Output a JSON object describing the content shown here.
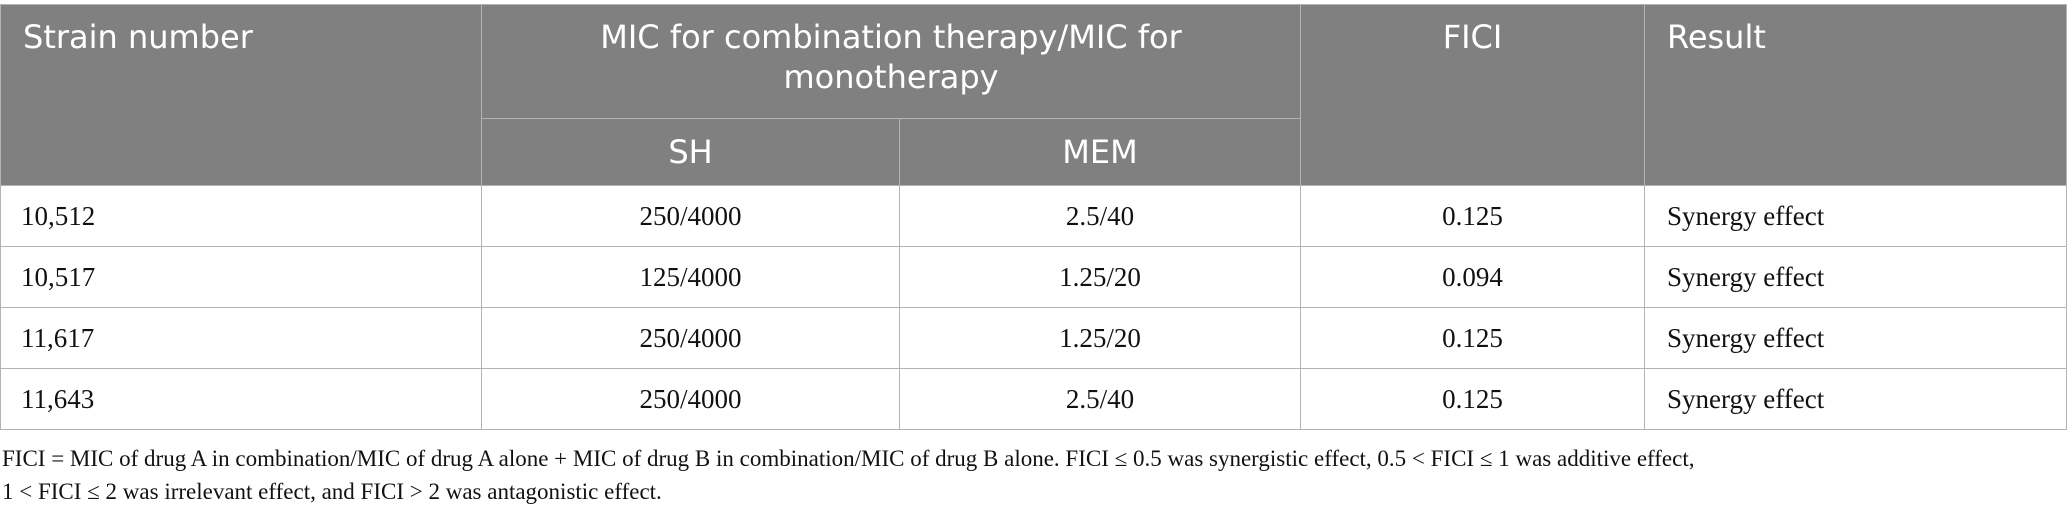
{
  "table": {
    "headers": {
      "strain": "Strain number",
      "mic_group": "MIC for combination therapy/MIC for monotherapy",
      "sh": "SH",
      "mem": "MEM",
      "fici": "FICI",
      "result": "Result"
    },
    "rows": [
      {
        "strain": "10,512",
        "sh": "250/4000",
        "mem": "2.5/40",
        "fici": "0.125",
        "result": "Synergy effect"
      },
      {
        "strain": "10,517",
        "sh": "125/4000",
        "mem": "1.25/20",
        "fici": "0.094",
        "result": "Synergy effect"
      },
      {
        "strain": "11,617",
        "sh": "250/4000",
        "mem": "1.25/20",
        "fici": "0.125",
        "result": "Synergy effect"
      },
      {
        "strain": "11,643",
        "sh": "250/4000",
        "mem": "2.5/40",
        "fici": "0.125",
        "result": "Synergy effect"
      }
    ]
  },
  "footnote": {
    "line1": "FICI = MIC of drug A in combination/MIC of drug A alone + MIC of drug B in combination/MIC of drug B alone. FICI ≤ 0.5 was synergistic effect, 0.5 < FICI ≤ 1 was additive effect,",
    "line2": "1 < FICI ≤ 2 was irrelevant effect, and FICI > 2 was antagonistic effect."
  },
  "colors": {
    "header_bg": "#808080",
    "header_text": "#ffffff",
    "grid": "#b3b3b3"
  }
}
